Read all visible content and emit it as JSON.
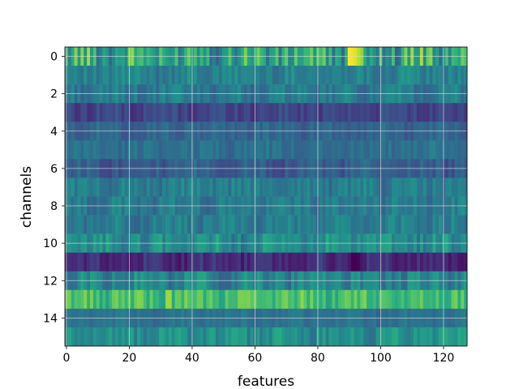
{
  "chart_data": {
    "type": "heatmap",
    "title": "",
    "xlabel": "features",
    "ylabel": "channels",
    "colormap": "viridis",
    "grid": true,
    "x_range": [
      -0.5,
      127.5
    ],
    "y_range": [
      15.5,
      -0.5
    ],
    "x_ticks": [
      0,
      20,
      40,
      60,
      80,
      100,
      120
    ],
    "y_ticks": [
      0,
      2,
      4,
      6,
      8,
      10,
      12,
      14
    ],
    "n_channels": 16,
    "n_features": 128,
    "value_range": [
      0,
      1
    ],
    "channel_profiles": [
      {
        "channel": 0,
        "base": 0.6,
        "var": 0.28,
        "peaks": [
          {
            "x": 90,
            "v": 1.0
          },
          {
            "x": 91,
            "v": 0.98
          },
          {
            "x": 92,
            "v": 0.95
          }
        ]
      },
      {
        "channel": 1,
        "base": 0.44,
        "var": 0.1,
        "peaks": []
      },
      {
        "channel": 2,
        "base": 0.4,
        "var": 0.1,
        "peaks": []
      },
      {
        "channel": 3,
        "base": 0.22,
        "var": 0.07,
        "peaks": []
      },
      {
        "channel": 4,
        "base": 0.33,
        "var": 0.08,
        "peaks": []
      },
      {
        "channel": 5,
        "base": 0.37,
        "var": 0.08,
        "peaks": []
      },
      {
        "channel": 6,
        "base": 0.3,
        "var": 0.09,
        "peaks": []
      },
      {
        "channel": 7,
        "base": 0.42,
        "var": 0.1,
        "peaks": []
      },
      {
        "channel": 8,
        "base": 0.41,
        "var": 0.1,
        "peaks": []
      },
      {
        "channel": 9,
        "base": 0.42,
        "var": 0.1,
        "peaks": []
      },
      {
        "channel": 10,
        "base": 0.48,
        "var": 0.14,
        "peaks": []
      },
      {
        "channel": 11,
        "base": 0.14,
        "var": 0.08,
        "peaks": [
          {
            "x": 91,
            "v": 0.0
          },
          {
            "x": 92,
            "v": 0.0
          },
          {
            "x": 93,
            "v": 0.02
          }
        ]
      },
      {
        "channel": 12,
        "base": 0.45,
        "var": 0.14,
        "peaks": []
      },
      {
        "channel": 13,
        "base": 0.7,
        "var": 0.14,
        "peaks": [
          {
            "x": 32,
            "v": 0.85
          },
          {
            "x": 33,
            "v": 0.86
          }
        ]
      },
      {
        "channel": 14,
        "base": 0.38,
        "var": 0.06,
        "peaks": []
      },
      {
        "channel": 15,
        "base": 0.5,
        "var": 0.12,
        "peaks": []
      }
    ]
  }
}
